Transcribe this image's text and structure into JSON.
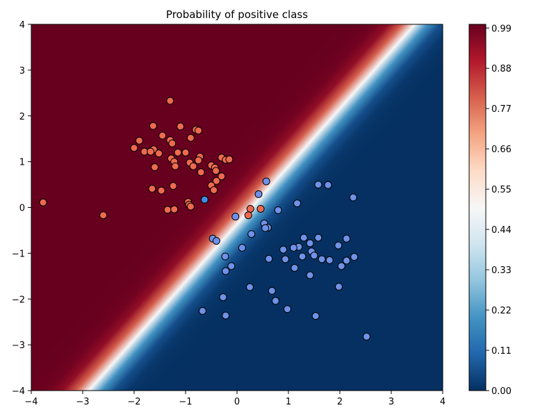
{
  "chart_data": {
    "type": "scatter",
    "title": "Probability of positive class",
    "xlabel": "",
    "ylabel": "",
    "xlim": [
      -4,
      4
    ],
    "ylim": [
      -4,
      4
    ],
    "xticks": [
      "−4",
      "−3",
      "−2",
      "−1",
      "0",
      "1",
      "2",
      "3",
      "4"
    ],
    "yticks": [
      "−4",
      "−3",
      "−2",
      "−1",
      "0",
      "1",
      "2",
      "3",
      "4"
    ],
    "grid": false,
    "background": {
      "kind": "probability-heatmap",
      "boundary": "x - y = 0.32",
      "steepness": 5,
      "colormap": "RdBu_r"
    },
    "colorbar": {
      "range": [
        0,
        1
      ],
      "tick_values": [
        0.0,
        0.11,
        0.22,
        0.33,
        0.44,
        0.55,
        0.66,
        0.77,
        0.88,
        0.99
      ],
      "tick_labels": [
        "0.00",
        "0.11",
        "0.22",
        "0.33",
        "0.44",
        "0.55",
        "0.66",
        "0.77",
        "0.88",
        "0.99"
      ],
      "colors": [
        "#053061",
        "#2166ac",
        "#4393c3",
        "#92c5de",
        "#d1e5f0",
        "#f7f7f7",
        "#fddbc7",
        "#f4a582",
        "#d6604d",
        "#b2182b",
        "#67001f"
      ]
    },
    "point_colors": {
      "positive": "#ee6a4f",
      "negative": "#6f91e8",
      "misclassified_negative": "#3f8be6"
    },
    "series": [
      {
        "class": "positive",
        "points": [
          [
            -1.3,
            2.33
          ],
          [
            -1.63,
            1.78
          ],
          [
            -1.1,
            1.77
          ],
          [
            -1.9,
            1.46
          ],
          [
            -1.45,
            1.57
          ],
          [
            -0.8,
            1.7
          ],
          [
            -0.75,
            1.68
          ],
          [
            -0.9,
            1.52
          ],
          [
            -1.3,
            1.47
          ],
          [
            -1.26,
            1.4
          ],
          [
            -2.0,
            1.3
          ],
          [
            -1.62,
            1.27
          ],
          [
            -1.52,
            1.18
          ],
          [
            -1.8,
            1.22
          ],
          [
            -1.68,
            1.22
          ],
          [
            -1.15,
            1.2
          ],
          [
            -1.0,
            1.2
          ],
          [
            -0.72,
            1.11
          ],
          [
            -0.75,
            1.03
          ],
          [
            -1.28,
            1.07
          ],
          [
            -1.22,
            1.0
          ],
          [
            -0.92,
            0.98
          ],
          [
            -0.85,
            0.9
          ],
          [
            -1.2,
            0.9
          ],
          [
            -1.6,
            0.88
          ],
          [
            -0.3,
            1.09
          ],
          [
            -0.22,
            1.04
          ],
          [
            -0.15,
            1.05
          ],
          [
            -0.5,
            0.92
          ],
          [
            -0.43,
            0.87
          ],
          [
            -0.41,
            0.8
          ],
          [
            -0.7,
            0.77
          ],
          [
            -0.3,
            0.68
          ],
          [
            -0.4,
            0.58
          ],
          [
            -0.5,
            0.48
          ],
          [
            -1.24,
            0.47
          ],
          [
            -1.65,
            0.41
          ],
          [
            -1.47,
            0.37
          ],
          [
            -0.45,
            0.38
          ],
          [
            -0.95,
            0.12
          ],
          [
            -0.93,
            0.06
          ],
          [
            -0.9,
            0.02
          ],
          [
            -1.35,
            -0.05
          ],
          [
            -1.22,
            -0.04
          ],
          [
            -3.77,
            0.11
          ],
          [
            -2.6,
            -0.17
          ],
          [
            0.26,
            -0.03
          ],
          [
            0.46,
            -0.03
          ],
          [
            0.22,
            -0.17
          ]
        ]
      },
      {
        "class": "negative",
        "points": [
          [
            0.57,
            0.57
          ],
          [
            1.58,
            0.5
          ],
          [
            1.77,
            0.49
          ],
          [
            2.26,
            0.22
          ],
          [
            0.42,
            0.29
          ],
          [
            1.17,
            0.09
          ],
          [
            0.8,
            -0.06
          ],
          [
            -0.03,
            -0.2
          ],
          [
            0.53,
            -0.35
          ],
          [
            0.6,
            -0.44
          ],
          [
            0.55,
            -0.45
          ],
          [
            0.28,
            -0.58
          ],
          [
            -0.47,
            -0.68
          ],
          [
            -0.4,
            -0.73
          ],
          [
            1.3,
            -0.66
          ],
          [
            1.58,
            -0.66
          ],
          [
            2.13,
            -0.68
          ],
          [
            1.42,
            -0.78
          ],
          [
            1.97,
            -0.83
          ],
          [
            1.2,
            -0.86
          ],
          [
            1.1,
            -0.88
          ],
          [
            0.9,
            -0.92
          ],
          [
            0.1,
            -0.88
          ],
          [
            1.45,
            -0.96
          ],
          [
            1.5,
            -1.05
          ],
          [
            1.27,
            -1.07
          ],
          [
            -0.23,
            -1.07
          ],
          [
            0.94,
            -1.13
          ],
          [
            0.62,
            -1.12
          ],
          [
            1.65,
            -1.13
          ],
          [
            1.8,
            -1.15
          ],
          [
            2.13,
            -1.16
          ],
          [
            2.28,
            -1.08
          ],
          [
            -0.11,
            -1.28
          ],
          [
            2.03,
            -1.28
          ],
          [
            1.12,
            -1.32
          ],
          [
            -0.22,
            -1.39
          ],
          [
            1.42,
            -1.48
          ],
          [
            0.25,
            -1.74
          ],
          [
            1.98,
            -1.73
          ],
          [
            0.68,
            -1.82
          ],
          [
            -0.27,
            -1.96
          ],
          [
            0.75,
            -2.04
          ],
          [
            0.98,
            -2.22
          ],
          [
            -0.67,
            -2.26
          ],
          [
            -0.22,
            -2.36
          ],
          [
            1.53,
            -2.37
          ],
          [
            2.52,
            -2.82
          ]
        ]
      },
      {
        "class": "misclassified_negative",
        "points": [
          [
            -0.63,
            0.17
          ]
        ]
      }
    ]
  }
}
